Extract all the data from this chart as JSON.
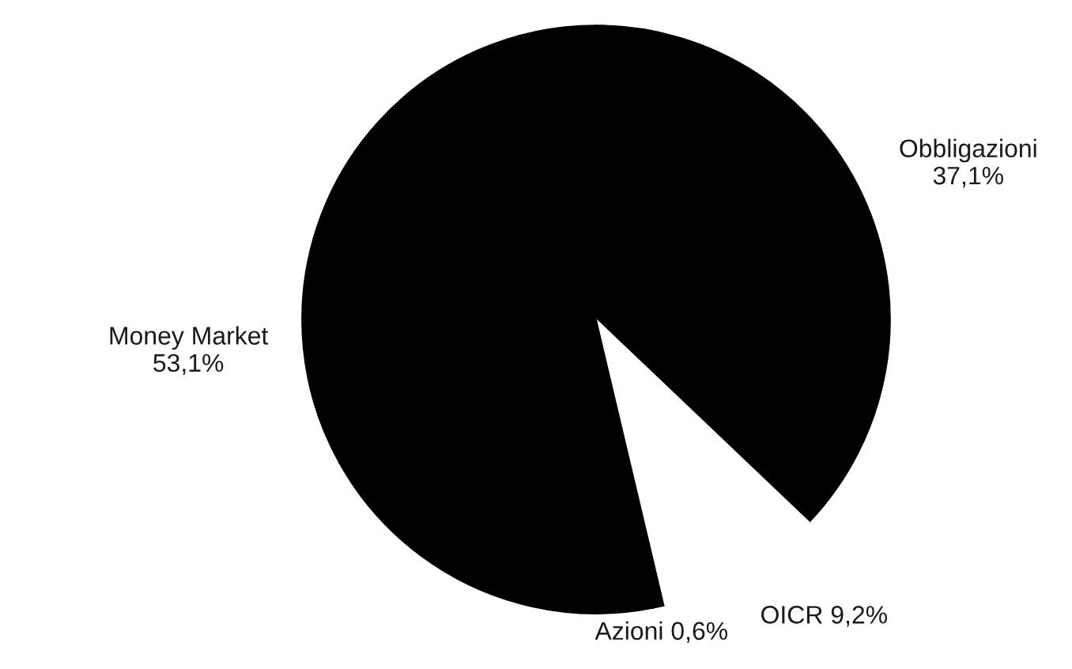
{
  "chart_data": {
    "type": "pie",
    "categories": [
      "Obbligazioni",
      "OICR",
      "Azioni",
      "Money Market"
    ],
    "values": [
      37.1,
      9.2,
      0.6,
      53.1
    ],
    "colors": [
      "#000000",
      "#ffffff",
      "#000000",
      "#000000"
    ],
    "value_labels": [
      "37,1%",
      "9,2%",
      "0,6%",
      "53,1%"
    ]
  }
}
